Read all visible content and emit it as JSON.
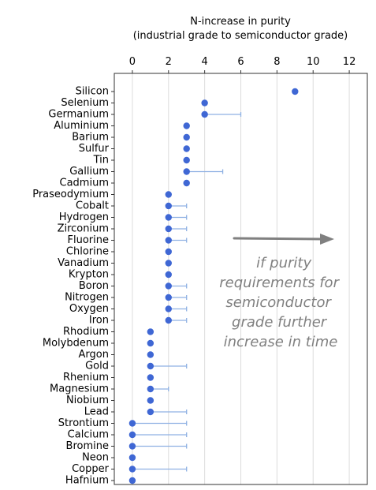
{
  "chart_data": {
    "type": "scatter",
    "title": "",
    "xlabel": "N-increase in purity",
    "xlabel_line2": "(industrial grade to semiconductor grade)",
    "ylabel": "",
    "xlim": [
      -1,
      13
    ],
    "x_axis_position": "top",
    "x_ticks": [
      0,
      2,
      4,
      6,
      8,
      10,
      12
    ],
    "x_tick_labels": [
      "0",
      "2",
      "4",
      "6",
      "8",
      "10",
      "12"
    ],
    "grid": "vertical",
    "legend": "none",
    "colors": {
      "point": "#3f67d4",
      "range": "#8fb1e3",
      "grid": "#dcdcdc",
      "annotation": "#808080",
      "frame": "#333333"
    },
    "categories": [
      "Silicon",
      "Selenium",
      "Germanium",
      "Aluminium",
      "Barium",
      "Sulfur",
      "Tin",
      "Gallium",
      "Cadmium",
      "Praseodymium",
      "Cobalt",
      "Hydrogen",
      "Zirconium",
      "Fluorine",
      "Chlorine",
      "Vanadium",
      "Krypton",
      "Boron",
      "Nitrogen",
      "Oxygen",
      "Iron",
      "Rhodium",
      "Molybdenum",
      "Argon",
      "Gold",
      "Rhenium",
      "Magnesium",
      "Niobium",
      "Lead",
      "Strontium",
      "Calcium",
      "Bromine",
      "Neon",
      "Copper",
      "Hafnium"
    ],
    "series": [
      {
        "values": [
          9,
          4,
          4,
          3,
          3,
          3,
          3,
          3,
          3,
          2,
          2,
          2,
          2,
          2,
          2,
          2,
          2,
          2,
          2,
          2,
          2,
          1,
          1,
          1,
          1,
          1,
          1,
          1,
          1,
          0,
          0,
          0,
          0,
          0,
          0
        ],
        "range_max": [
          null,
          null,
          6,
          null,
          null,
          null,
          null,
          5,
          null,
          null,
          3,
          3,
          3,
          3,
          null,
          null,
          null,
          3,
          3,
          3,
          3,
          null,
          null,
          null,
          3,
          null,
          2,
          null,
          3,
          3,
          3,
          3,
          null,
          3,
          null
        ]
      }
    ],
    "annotations": [
      {
        "lines": [
          "if purity",
          "requirements for",
          "semiconductor",
          "grade further",
          "increase in time"
        ],
        "arrow": "right"
      }
    ]
  }
}
